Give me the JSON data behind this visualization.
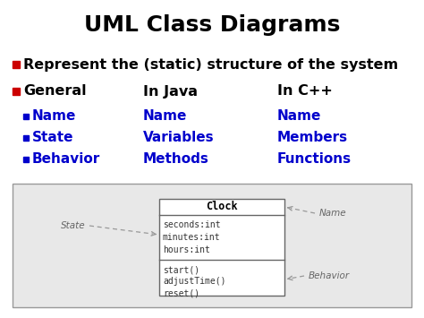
{
  "title": "UML Class Diagrams",
  "title_fontsize": 18,
  "title_color": "#000000",
  "background_color": "#ffffff",
  "bullet1_text": "Represent the (static) structure of the system",
  "bullet1_color": "#cc0000",
  "bullet1_text_color": "#000000",
  "bullet1_fontsize": 11.5,
  "header_color": "#cc0000",
  "header_text_color": "#000000",
  "header_fontsize": 11.5,
  "col1_header": "General",
  "col2_header": "In Java",
  "col3_header": "In C++",
  "sub_bullet_color": "#0000cc",
  "sub_bullet_text_color": "#0000cc",
  "sub_fontsize": 11,
  "rows": [
    [
      "Name",
      "Name",
      "Name"
    ],
    [
      "State",
      "Variables",
      "Members"
    ],
    [
      "Behavior",
      "Methods",
      "Functions"
    ]
  ],
  "diagram_bg": "#e8e8e8",
  "diagram_box_bg": "#ffffff",
  "diagram_border": "#999999",
  "class_name": "Clock",
  "attributes": [
    "seconds:int",
    "minutes:int",
    "hours:int"
  ],
  "methods": [
    "start()",
    "adjustTime()",
    "reset()"
  ],
  "label_state": "State",
  "label_name": "Name",
  "label_behavior": "Behavior"
}
